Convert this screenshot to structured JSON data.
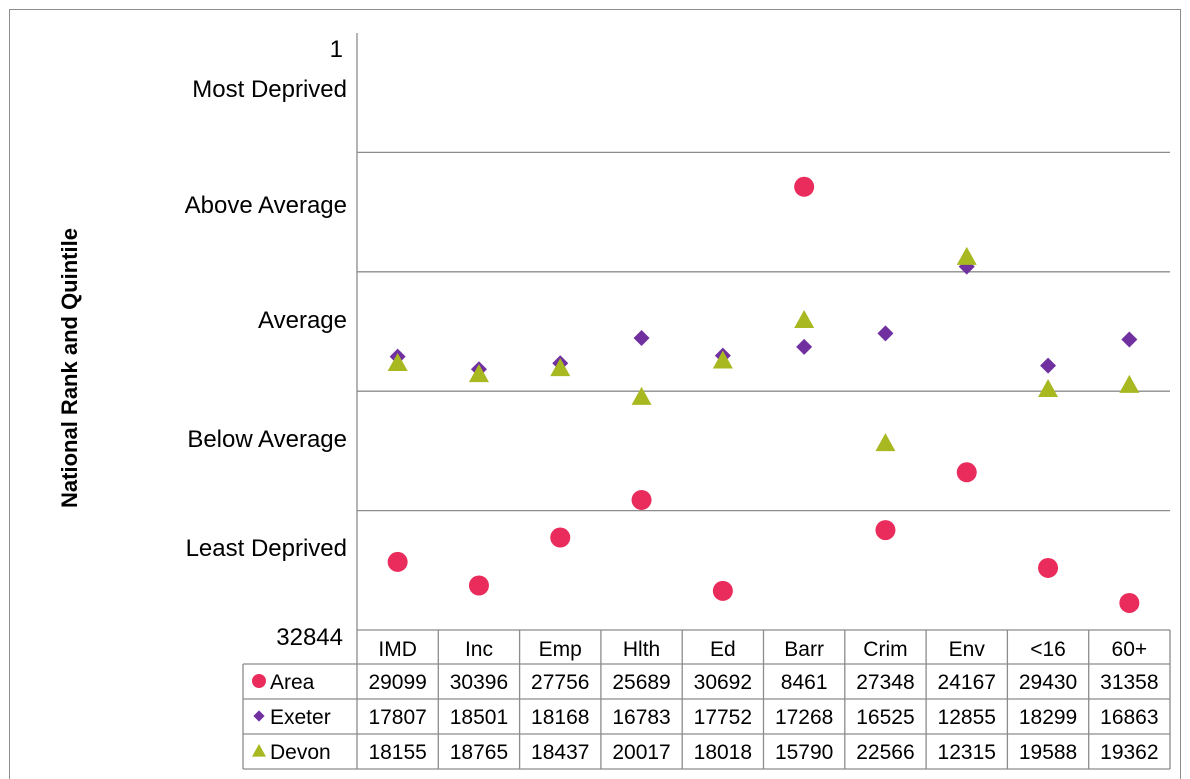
{
  "chart_data": {
    "type": "scatter",
    "ylabel": "National Rank and Quintile",
    "y_range": [
      32844,
      1
    ],
    "y_scale": "reversed",
    "y_ticks": [
      {
        "value": 1,
        "label": "1"
      },
      {
        "value": 32844,
        "label": "32844"
      }
    ],
    "quintile_labels": [
      "Most Deprived",
      "Above Average",
      "Average",
      "Below Average",
      "Least Deprived"
    ],
    "categories": [
      "IMD",
      "Inc",
      "Emp",
      "Hlth",
      "Ed",
      "Barr",
      "Crim",
      "Env",
      "<16",
      "60+"
    ],
    "series": [
      {
        "name": "Area",
        "marker": "circle",
        "color": "#ea2c5c",
        "values": [
          29099,
          30396,
          27756,
          25689,
          30692,
          8461,
          27348,
          24167,
          29430,
          31358
        ]
      },
      {
        "name": "Exeter",
        "marker": "diamond",
        "color": "#7030a0",
        "values": [
          17807,
          18501,
          18168,
          16783,
          17752,
          17268,
          16525,
          12855,
          18299,
          16863
        ]
      },
      {
        "name": "Devon",
        "marker": "triangle",
        "color": "#a8b820",
        "values": [
          18155,
          18765,
          18437,
          20017,
          18018,
          15790,
          22566,
          12315,
          19588,
          19362
        ]
      }
    ],
    "grid": "horizontal at quintile boundaries",
    "legend": "data table below chart"
  }
}
